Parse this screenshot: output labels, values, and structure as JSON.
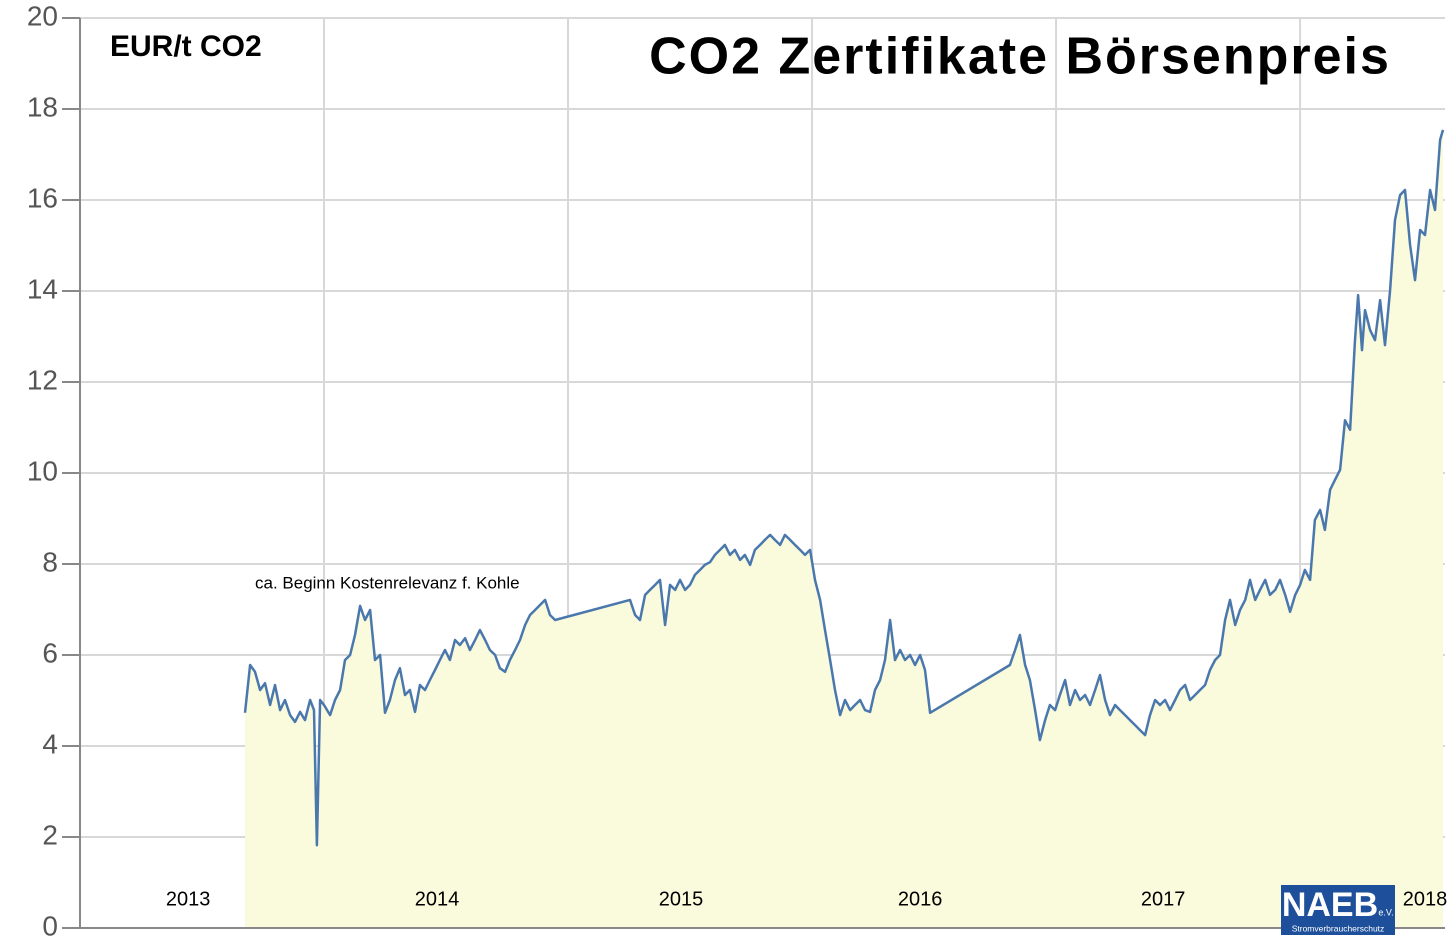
{
  "chart_data": {
    "type": "line",
    "title": "CO2 Zertifikate Börsenpreis",
    "y_label": "EUR/t CO2",
    "annotation": "ca. Beginn Kostenrelevanz f. Kohle",
    "logo": {
      "name": "NAEB",
      "suffix": "e.V.",
      "tagline": "Stromverbraucherschutz"
    },
    "xlim": [
      2013,
      2018.594
    ],
    "ylim": [
      0,
      20
    ],
    "yticks": [
      0,
      2,
      4,
      6,
      8,
      10,
      12,
      14,
      16,
      18,
      20
    ],
    "xticks": [
      {
        "value": 2013.443,
        "label": "2013"
      },
      {
        "value": 2014.463,
        "label": "2014"
      },
      {
        "value": 2015.463,
        "label": "2015"
      },
      {
        "value": 2016.443,
        "label": "2016"
      },
      {
        "value": 2017.439,
        "label": "2017"
      },
      {
        "value": 2018.512,
        "label": "2018"
      }
    ],
    "xgrid": [
      2014,
      2015,
      2016,
      2017,
      2018
    ],
    "grid": true,
    "series": [
      {
        "name": "CO2",
        "color": "#4a78ad",
        "fill": "#fafadc",
        "x": [
          2013.676,
          2013.697,
          2013.717,
          2013.738,
          2013.758,
          2013.779,
          2013.799,
          2013.82,
          2013.84,
          2013.861,
          2013.881,
          2013.902,
          2013.922,
          2013.943,
          2013.959,
          2013.971,
          2013.984,
          2014.0,
          2014.025,
          2014.045,
          2014.066,
          2014.086,
          2014.107,
          2014.127,
          2014.148,
          2014.168,
          2014.189,
          2014.209,
          2014.23,
          2014.25,
          2014.27,
          2014.291,
          2014.311,
          2014.332,
          2014.352,
          2014.373,
          2014.393,
          2014.414,
          2014.434,
          2014.455,
          2014.475,
          2014.496,
          2014.516,
          2014.537,
          2014.557,
          2014.578,
          2014.598,
          2014.619,
          2014.639,
          2014.66,
          2014.68,
          2014.701,
          2014.721,
          2014.742,
          2014.762,
          2014.783,
          2014.803,
          2014.824,
          2014.844,
          2014.865,
          2014.885,
          2014.906,
          2014.926,
          2014.947,
          2015.254,
          2015.275,
          2015.295,
          2015.316,
          2015.336,
          2015.357,
          2015.377,
          2015.398,
          2015.418,
          2015.439,
          2015.459,
          2015.48,
          2015.5,
          2015.52,
          2015.541,
          2015.561,
          2015.582,
          2015.602,
          2015.623,
          2015.643,
          2015.664,
          2015.684,
          2015.705,
          2015.725,
          2015.746,
          2015.766,
          2015.787,
          2015.807,
          2015.828,
          2015.848,
          2015.869,
          2015.889,
          2015.91,
          2015.93,
          2015.951,
          2015.971,
          2015.992,
          2016.012,
          2016.033,
          2016.053,
          2016.074,
          2016.094,
          2016.115,
          2016.135,
          2016.156,
          2016.176,
          2016.197,
          2016.217,
          2016.238,
          2016.258,
          2016.279,
          2016.299,
          2016.32,
          2016.34,
          2016.361,
          2016.381,
          2016.402,
          2016.422,
          2016.443,
          2016.463,
          2016.484,
          2016.811,
          2016.832,
          2016.852,
          2016.873,
          2016.893,
          2016.914,
          2016.934,
          2016.955,
          2016.975,
          2016.996,
          2017.016,
          2017.037,
          2017.057,
          2017.078,
          2017.098,
          2017.119,
          2017.139,
          2017.16,
          2017.18,
          2017.201,
          2017.221,
          2017.242,
          2017.262,
          2017.283,
          2017.303,
          2017.324,
          2017.344,
          2017.365,
          2017.385,
          2017.406,
          2017.426,
          2017.447,
          2017.467,
          2017.488,
          2017.508,
          2017.529,
          2017.549,
          2017.57,
          2017.59,
          2017.611,
          2017.631,
          2017.652,
          2017.672,
          2017.693,
          2017.713,
          2017.734,
          2017.754,
          2017.775,
          2017.795,
          2017.816,
          2017.836,
          2017.857,
          2017.877,
          2017.898,
          2017.918,
          2017.939,
          2017.959,
          2017.98,
          2018.0,
          2018.02,
          2018.041,
          2018.061,
          2018.082,
          2018.102,
          2018.123,
          2018.143,
          2018.164,
          2018.184,
          2018.205,
          2018.225,
          2018.238,
          2018.254,
          2018.266,
          2018.287,
          2018.307,
          2018.328,
          2018.348,
          2018.369,
          2018.389,
          2018.41,
          2018.43,
          2018.451,
          2018.471,
          2018.492,
          2018.512,
          2018.533,
          2018.553,
          2018.574,
          2018.586
        ],
        "values": [
          4.73,
          5.78,
          5.63,
          5.23,
          5.38,
          4.9,
          5.34,
          4.79,
          5.01,
          4.68,
          4.53,
          4.75,
          4.57,
          5.01,
          4.79,
          1.82,
          5.01,
          4.9,
          4.68,
          5.01,
          5.23,
          5.89,
          6.0,
          6.44,
          7.08,
          6.77,
          6.99,
          5.89,
          6.0,
          4.73,
          5.01,
          5.45,
          5.71,
          5.12,
          5.23,
          4.75,
          5.34,
          5.23,
          5.45,
          5.67,
          5.89,
          6.11,
          5.89,
          6.33,
          6.22,
          6.37,
          6.11,
          6.33,
          6.55,
          6.33,
          6.11,
          6.0,
          5.71,
          5.63,
          5.89,
          6.11,
          6.33,
          6.66,
          6.88,
          6.99,
          7.1,
          7.21,
          6.88,
          6.77,
          7.21,
          6.88,
          6.77,
          7.32,
          7.43,
          7.54,
          7.65,
          6.66,
          7.54,
          7.43,
          7.65,
          7.43,
          7.54,
          7.76,
          7.87,
          7.98,
          8.04,
          8.2,
          8.31,
          8.42,
          8.2,
          8.31,
          8.09,
          8.2,
          7.98,
          8.31,
          8.42,
          8.53,
          8.64,
          8.53,
          8.42,
          8.64,
          8.53,
          8.42,
          8.31,
          8.2,
          8.31,
          7.65,
          7.21,
          6.55,
          5.89,
          5.23,
          4.68,
          5.01,
          4.79,
          4.9,
          5.01,
          4.79,
          4.75,
          5.23,
          5.45,
          5.89,
          6.77,
          5.89,
          6.11,
          5.89,
          6.0,
          5.78,
          6.0,
          5.67,
          4.73,
          5.78,
          6.11,
          6.44,
          5.78,
          5.45,
          4.79,
          4.13,
          4.57,
          4.9,
          4.79,
          5.12,
          5.45,
          4.9,
          5.23,
          5.01,
          5.12,
          4.9,
          5.23,
          5.56,
          5.01,
          4.68,
          4.9,
          4.79,
          4.68,
          4.57,
          4.46,
          4.35,
          4.24,
          4.68,
          5.01,
          4.9,
          5.01,
          4.79,
          5.01,
          5.23,
          5.34,
          5.01,
          5.12,
          5.23,
          5.34,
          5.67,
          5.89,
          6.0,
          6.77,
          7.21,
          6.66,
          6.99,
          7.21,
          7.65,
          7.21,
          7.43,
          7.65,
          7.32,
          7.43,
          7.65,
          7.32,
          6.95,
          7.32,
          7.54,
          7.87,
          7.65,
          8.97,
          9.19,
          8.75,
          9.63,
          9.85,
          10.07,
          11.16,
          10.95,
          12.92,
          13.91,
          12.7,
          13.58,
          13.14,
          12.92,
          13.8,
          12.81,
          14.02,
          15.56,
          16.11,
          16.22,
          15.01,
          14.24,
          15.34,
          15.23,
          16.22,
          15.78,
          17.32,
          17.54
        ]
      }
    ]
  }
}
